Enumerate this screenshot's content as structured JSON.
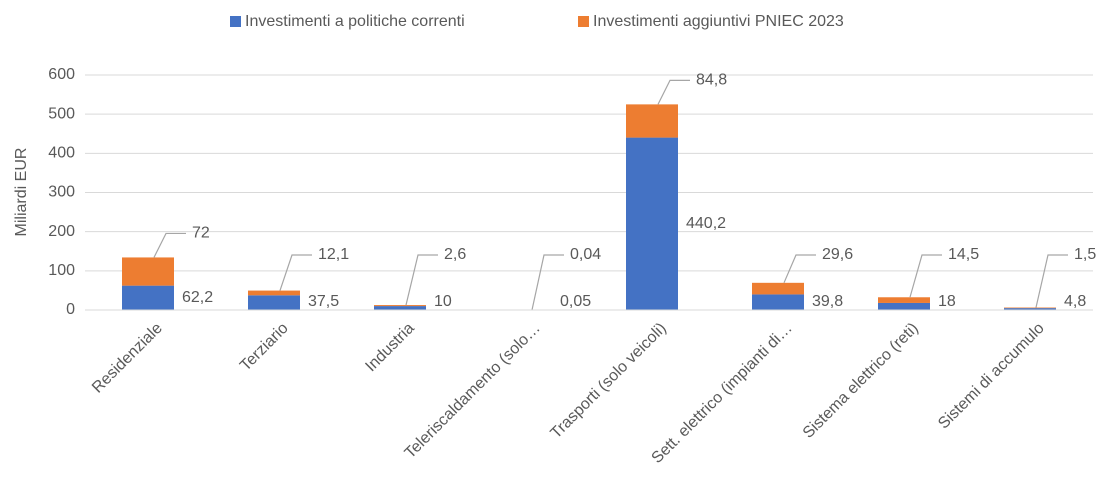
{
  "chart_data": {
    "type": "stacked_bar",
    "y_label": "Miliardi EUR",
    "categories": [
      "Residenziale",
      "Terziario",
      "Industria",
      "Teleriscaldamento (solo…",
      "Trasporti (solo veicoli)",
      "Sett. elettrico (impianti di…",
      "Sistema elettrico (reti)",
      "Sistemi di accumulo"
    ],
    "series": [
      {
        "name": "Investimenti a politiche correnti",
        "color": "#4472c4",
        "values": [
          62.2,
          37.5,
          10,
          0.05,
          440.2,
          39.8,
          18,
          4.8
        ],
        "value_labels": [
          "62,2",
          "37,5",
          "10",
          "0,05",
          "440,2",
          "39,8",
          "18",
          "4,8"
        ]
      },
      {
        "name": "Investimenti aggiuntivi PNIEC 2023",
        "color": "#ed7d31",
        "values": [
          72,
          12.1,
          2.6,
          0.04,
          84.8,
          29.6,
          14.5,
          1.5
        ],
        "value_labels": [
          "72",
          "12,1",
          "2,6",
          "0,04",
          "84,8",
          "29,6",
          "14,5",
          "1,5"
        ]
      }
    ],
    "ylim": [
      0,
      600
    ],
    "yticks": [
      0,
      100,
      200,
      300,
      400,
      500,
      600
    ],
    "grid": true,
    "legend": "top"
  }
}
